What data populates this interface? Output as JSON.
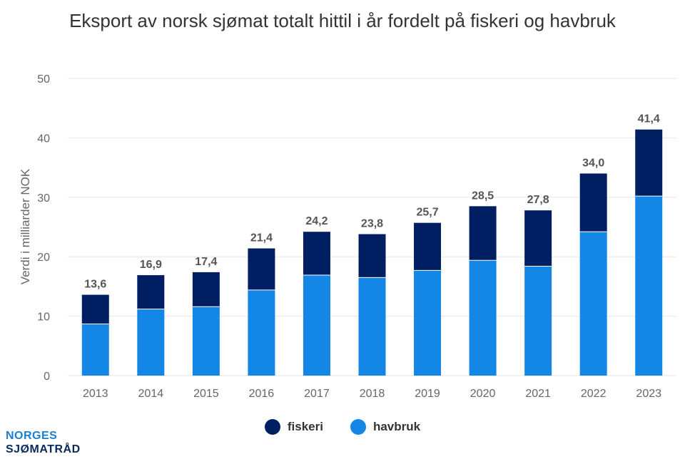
{
  "colors": {
    "fiskeri": "#001f63",
    "havbruk": "#1487e6",
    "grid": "#e6e6e6",
    "axis_text": "#666666",
    "label_text": "#555555"
  },
  "logo": {
    "line1": "NORGES",
    "line2": "SJØMATRÅD"
  },
  "chart_data": {
    "type": "bar",
    "stacked": true,
    "title": "Eksport av norsk sjømat totalt hittil i år fordelt på fiskeri og havbruk",
    "xlabel": "",
    "ylabel": "Verdi i milliarder NOK",
    "ylim": [
      0,
      50
    ],
    "yticks": [
      0,
      10,
      20,
      30,
      40,
      50
    ],
    "grid": true,
    "legend_position": "bottom",
    "categories": [
      "2013",
      "2014",
      "2015",
      "2016",
      "2017",
      "2018",
      "2019",
      "2020",
      "2021",
      "2022",
      "2023"
    ],
    "series": [
      {
        "name": "havbruk",
        "values": [
          8.7,
          11.2,
          11.6,
          14.4,
          16.9,
          16.5,
          17.7,
          19.4,
          18.4,
          24.2,
          30.2
        ]
      },
      {
        "name": "fiskeri",
        "values": [
          4.9,
          5.7,
          5.8,
          7.0,
          7.3,
          7.3,
          8.0,
          9.1,
          9.4,
          9.8,
          11.2
        ]
      }
    ],
    "totals": [
      "13,6",
      "16,9",
      "17,4",
      "21,4",
      "24,2",
      "23,8",
      "25,7",
      "28,5",
      "27,8",
      "34,0",
      "41,4"
    ],
    "legend": [
      "fiskeri",
      "havbruk"
    ]
  }
}
